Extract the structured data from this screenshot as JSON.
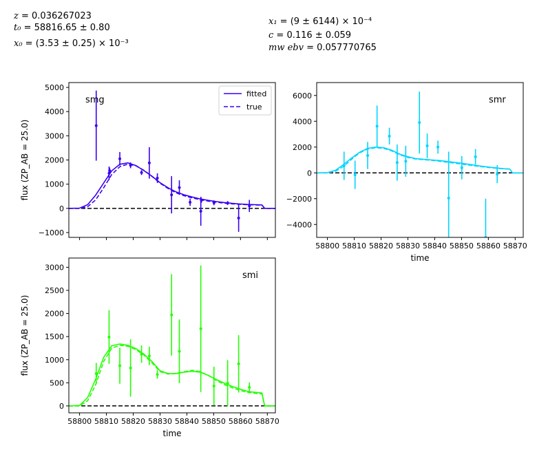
{
  "header": {
    "params_left": [
      {
        "var": "z",
        "text": " = 0.036267023"
      },
      {
        "var": "t₀",
        "text": " = 58816.65 ± 0.80"
      },
      {
        "var": "x₀",
        "text": " = (3.53 ± 0.25) × 10⁻³"
      }
    ],
    "params_right": [
      {
        "var": "x₁",
        "text": " = (9 ± 6144) × 10⁻⁴"
      },
      {
        "var": "c",
        "text": " = 0.116 ± 0.059"
      },
      {
        "var": "mw ebv",
        "text": " = 0.057770765"
      }
    ]
  },
  "chart_data": [
    {
      "type": "line",
      "panel_label": "smg",
      "color": "#3a00f0",
      "ylabel": "flux (ZP_AB = 25.0)",
      "xlabel": "",
      "xlim": [
        58796,
        58873
      ],
      "ylim": [
        -1200,
        5200
      ],
      "xticks": [
        58800,
        58810,
        58820,
        58830,
        58840,
        58850,
        58860,
        58870
      ],
      "show_xtick_labels": false,
      "yticks": [
        -1000,
        0,
        1000,
        2000,
        3000,
        4000,
        5000
      ],
      "legend": {
        "position": "top-right",
        "entries": [
          "fitted",
          "true"
        ]
      },
      "fitted": {
        "x": [
          58796,
          58800,
          58803,
          58806,
          58809,
          58812,
          58815,
          58818,
          58821,
          58824,
          58827,
          58830,
          58833,
          58836,
          58839,
          58842,
          58845,
          58848,
          58851,
          58854,
          58857,
          58860,
          58863,
          58866,
          58868,
          58869,
          58873
        ],
        "y": [
          0,
          10,
          150,
          550,
          1050,
          1550,
          1820,
          1880,
          1770,
          1560,
          1330,
          1060,
          850,
          680,
          560,
          470,
          390,
          330,
          280,
          240,
          205,
          180,
          160,
          150,
          140,
          0,
          0
        ]
      },
      "true": {
        "x": [
          58796,
          58800,
          58803,
          58806,
          58809,
          58812,
          58815,
          58818,
          58821,
          58824,
          58827,
          58830,
          58833,
          58836,
          58839,
          58842,
          58845,
          58848,
          58851,
          58854,
          58857,
          58860,
          58863,
          58866,
          58868,
          58869,
          58873
        ],
        "y": [
          0,
          0,
          70,
          350,
          850,
          1400,
          1720,
          1830,
          1760,
          1570,
          1320,
          1040,
          820,
          640,
          520,
          430,
          360,
          300,
          255,
          215,
          185,
          165,
          150,
          140,
          135,
          0,
          0
        ]
      },
      "points": [
        {
          "x": 58806.2,
          "y": 3420,
          "err": 1450
        },
        {
          "x": 58811.0,
          "y": 1450,
          "err": 280
        },
        {
          "x": 58811.2,
          "y": 1560,
          "err": 120
        },
        {
          "x": 58815.0,
          "y": 2050,
          "err": 280
        },
        {
          "x": 58819.0,
          "y": 1780,
          "err": 120
        },
        {
          "x": 58823.1,
          "y": 1480,
          "err": 100
        },
        {
          "x": 58826.0,
          "y": 1880,
          "err": 650
        },
        {
          "x": 58829.0,
          "y": 1250,
          "err": 200
        },
        {
          "x": 58834.3,
          "y": 560,
          "err": 770
        },
        {
          "x": 58837.2,
          "y": 860,
          "err": 300
        },
        {
          "x": 58841.2,
          "y": 250,
          "err": 150
        },
        {
          "x": 58845.2,
          "y": -120,
          "err": 600
        },
        {
          "x": 58845.4,
          "y": 330,
          "err": 100
        },
        {
          "x": 58850.1,
          "y": 230,
          "err": 100
        },
        {
          "x": 58855.2,
          "y": 220,
          "err": 80
        },
        {
          "x": 58859.3,
          "y": -400,
          "err": 570
        },
        {
          "x": 58863.3,
          "y": 100,
          "err": 250
        }
      ]
    },
    {
      "type": "line",
      "panel_label": "smr",
      "color": "#00d4ff",
      "ylabel": "",
      "xlabel": "time",
      "xlim": [
        58796,
        58873
      ],
      "ylim": [
        -5000,
        7000
      ],
      "xticks": [
        58800,
        58810,
        58820,
        58830,
        58840,
        58850,
        58860,
        58870
      ],
      "show_xtick_labels": true,
      "yticks": [
        -4000,
        -2000,
        0,
        2000,
        4000,
        6000
      ],
      "fitted": {
        "x": [
          58796,
          58800,
          58803,
          58806,
          58809,
          58812,
          58815,
          58818,
          58821,
          58824,
          58827,
          58830,
          58833,
          58836,
          58839,
          58842,
          58845,
          58848,
          58851,
          58854,
          58857,
          58860,
          58863,
          58866,
          58868,
          58869,
          58873
        ],
        "y": [
          0,
          20,
          200,
          650,
          1150,
          1600,
          1900,
          2000,
          1950,
          1750,
          1450,
          1250,
          1100,
          1050,
          1000,
          950,
          880,
          800,
          720,
          620,
          530,
          450,
          380,
          320,
          300,
          0,
          0
        ]
      },
      "true": {
        "x": [
          58796,
          58800,
          58803,
          58806,
          58809,
          58812,
          58815,
          58818,
          58821,
          58824,
          58827,
          58830,
          58833,
          58836,
          58839,
          58842,
          58845,
          58848,
          58851,
          58854,
          58857,
          58860,
          58863,
          58866,
          58868,
          58869,
          58873
        ],
        "y": [
          0,
          0,
          120,
          500,
          1050,
          1550,
          1850,
          1950,
          1900,
          1700,
          1400,
          1200,
          1070,
          1020,
          970,
          900,
          820,
          740,
          660,
          570,
          490,
          420,
          360,
          310,
          290,
          0,
          0
        ]
      },
      "points": [
        {
          "x": 58806.2,
          "y": 550,
          "err": 1100
        },
        {
          "x": 58810.3,
          "y": -150,
          "err": 1100
        },
        {
          "x": 58815.0,
          "y": 1350,
          "err": 1050
        },
        {
          "x": 58818.5,
          "y": 3620,
          "err": 1600
        },
        {
          "x": 58823.1,
          "y": 2850,
          "err": 650
        },
        {
          "x": 58826.0,
          "y": 800,
          "err": 1400
        },
        {
          "x": 58829.2,
          "y": 900,
          "err": 1200
        },
        {
          "x": 58834.3,
          "y": 3900,
          "err": 2400
        },
        {
          "x": 58837.2,
          "y": 2100,
          "err": 950
        },
        {
          "x": 58841.2,
          "y": 2000,
          "err": 500
        },
        {
          "x": 58845.2,
          "y": -1950,
          "err": 3600
        },
        {
          "x": 58850.1,
          "y": 400,
          "err": 900
        },
        {
          "x": 58855.2,
          "y": 1250,
          "err": 600
        },
        {
          "x": 58859.0,
          "y": -5000,
          "err": 3000
        },
        {
          "x": 58863.3,
          "y": -100,
          "err": 700
        }
      ]
    },
    {
      "type": "line",
      "panel_label": "smi",
      "color": "#22ff00",
      "ylabel": "flux (ZP_AB = 25.0)",
      "xlabel": "time",
      "xlim": [
        58796,
        58873
      ],
      "ylim": [
        -150,
        3200
      ],
      "xticks": [
        58800,
        58810,
        58820,
        58830,
        58840,
        58850,
        58860,
        58870
      ],
      "show_xtick_labels": true,
      "yticks": [
        0,
        500,
        1000,
        1500,
        2000,
        2500,
        3000
      ],
      "fitted": {
        "x": [
          58796,
          58800,
          58803,
          58806,
          58809,
          58812,
          58815,
          58818,
          58821,
          58824,
          58827,
          58830,
          58833,
          58836,
          58839,
          58842,
          58845,
          58848,
          58851,
          58854,
          58857,
          58860,
          58863,
          58866,
          58868,
          58869,
          58873
        ],
        "y": [
          0,
          10,
          180,
          580,
          1050,
          1300,
          1340,
          1310,
          1240,
          1120,
          960,
          760,
          700,
          700,
          730,
          750,
          730,
          660,
          570,
          490,
          420,
          360,
          310,
          290,
          280,
          0,
          0
        ]
      },
      "true": {
        "x": [
          58796,
          58800,
          58803,
          58806,
          58809,
          58812,
          58815,
          58818,
          58821,
          58824,
          58827,
          58830,
          58833,
          58836,
          58839,
          58842,
          58845,
          58848,
          58851,
          58854,
          58857,
          58860,
          58863,
          58866,
          58868,
          58869,
          58873
        ],
        "y": [
          0,
          0,
          110,
          460,
          960,
          1250,
          1310,
          1290,
          1220,
          1100,
          930,
          740,
          690,
          700,
          740,
          770,
          740,
          660,
          550,
          460,
          390,
          330,
          290,
          270,
          260,
          0,
          0
        ]
      },
      "points": [
        {
          "x": 58806.2,
          "y": 700,
          "err": 230
        },
        {
          "x": 58811.0,
          "y": 1490,
          "err": 580
        },
        {
          "x": 58815.0,
          "y": 870,
          "err": 390
        },
        {
          "x": 58819.0,
          "y": 820,
          "err": 620
        },
        {
          "x": 58823.1,
          "y": 1120,
          "err": 190
        },
        {
          "x": 58826.0,
          "y": 1080,
          "err": 200
        },
        {
          "x": 58829.0,
          "y": 680,
          "err": 90
        },
        {
          "x": 58834.3,
          "y": 1970,
          "err": 880
        },
        {
          "x": 58837.2,
          "y": 1180,
          "err": 690
        },
        {
          "x": 58845.2,
          "y": 1670,
          "err": 1370
        },
        {
          "x": 58850.1,
          "y": 430,
          "err": 420
        },
        {
          "x": 58855.2,
          "y": 490,
          "err": 500
        },
        {
          "x": 58859.3,
          "y": 910,
          "err": 620
        },
        {
          "x": 58863.3,
          "y": 400,
          "err": 110
        }
      ]
    }
  ]
}
